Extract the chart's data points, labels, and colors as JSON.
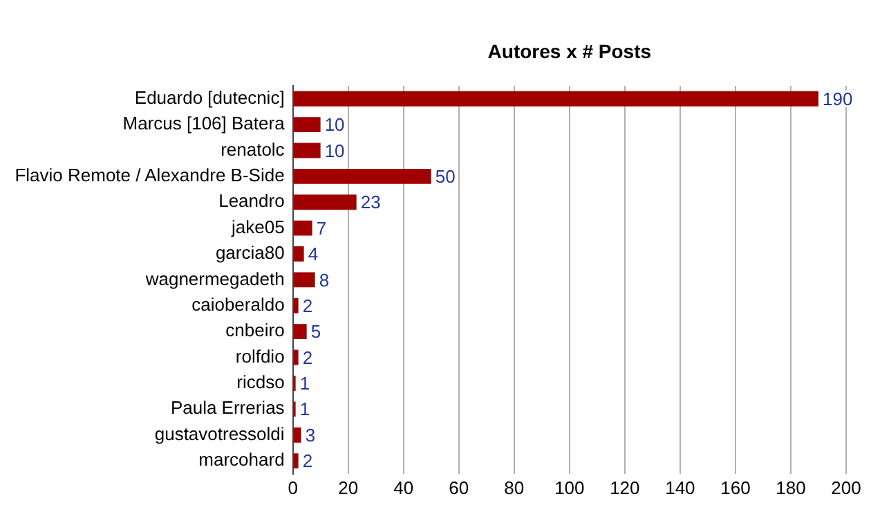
{
  "chart_data": {
    "type": "bar",
    "orientation": "horizontal",
    "title": "Autores x # Posts",
    "categories": [
      "Eduardo [dutecnic]",
      "Marcus [106] Batera",
      "renatolc",
      "Flavio Remote / Alexandre B-Side",
      "Leandro",
      "jake05",
      "garcia80",
      "wagnermegadeth",
      "caioberaldo",
      "cnbeiro",
      "rolfdio",
      "ricdso",
      "Paula Errerias",
      "gustavotressoldi",
      "marcohard"
    ],
    "values": [
      190,
      10,
      10,
      50,
      23,
      7,
      4,
      8,
      2,
      5,
      2,
      1,
      1,
      3,
      2
    ],
    "color": "#a00000",
    "xlim": [
      0,
      200
    ],
    "xticks": [
      0,
      20,
      40,
      60,
      80,
      100,
      120,
      140,
      160,
      180,
      200
    ],
    "grid": "x",
    "legend": false,
    "data_labels": true
  }
}
